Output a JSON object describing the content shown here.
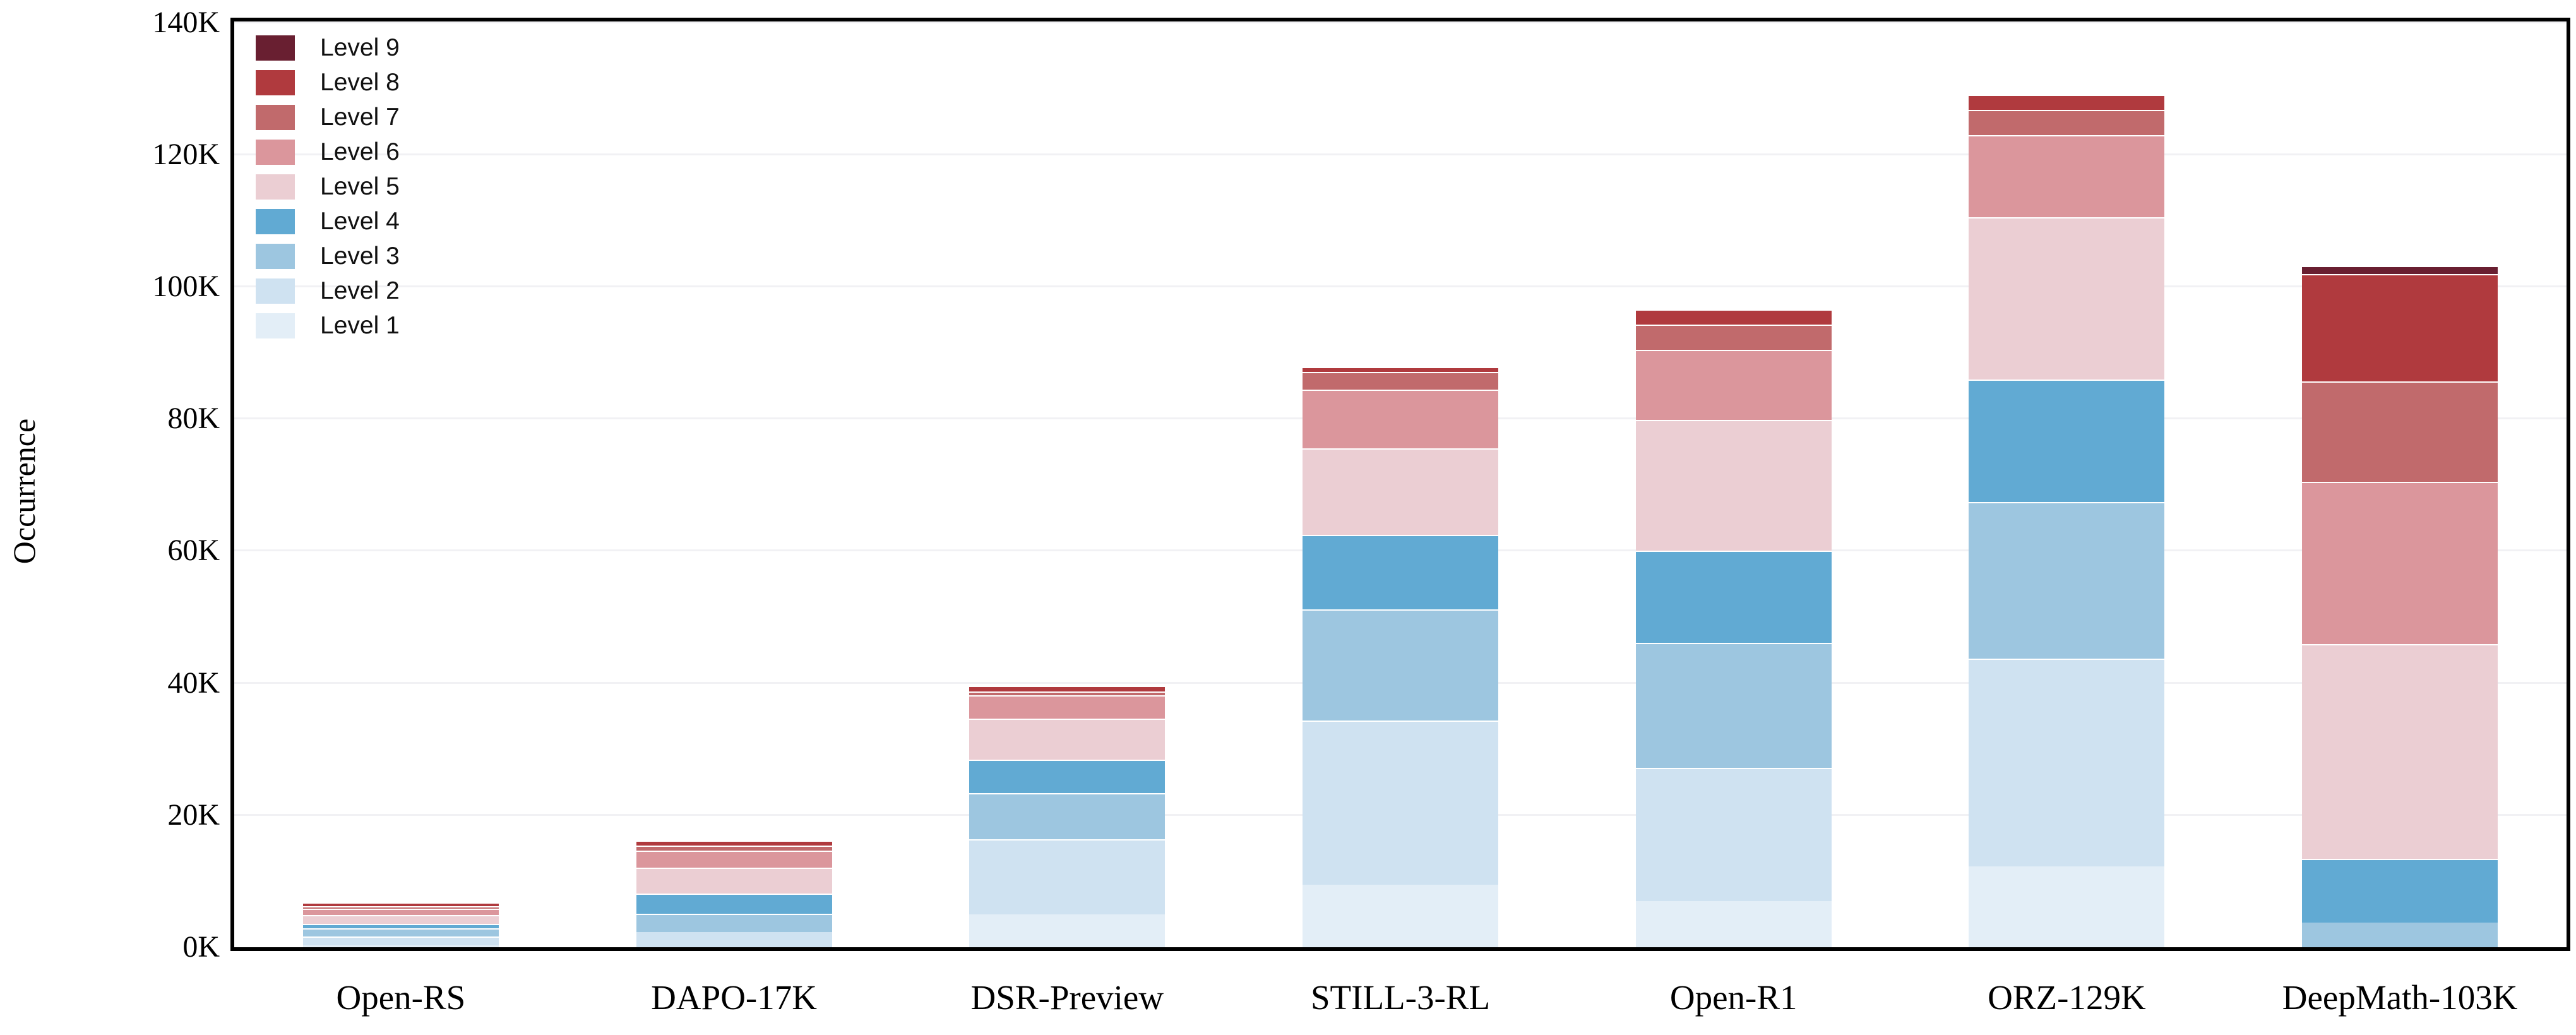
{
  "chart_data": {
    "type": "bar",
    "stacked": true,
    "title": "",
    "xlabel": "",
    "ylabel": "Occurrence",
    "unit": "K",
    "ylim": [
      0,
      140
    ],
    "grid": true,
    "legend_position": "upper left",
    "legend_order_note": "legend listed top-to-bottom from Level 9 down to Level 1; bars stack Level 1 at bottom to Level 9 at top",
    "categories": [
      "Open-RS",
      "DAPO-17K",
      "DSR-Preview",
      "STILL-3-RL",
      "Open-R1",
      "ORZ-129K",
      "DeepMath-103K"
    ],
    "y_tick_labels": [
      "0K",
      "20K",
      "40K",
      "60K",
      "80K",
      "100K",
      "120K",
      "140K"
    ],
    "series": [
      {
        "name": "Level 1",
        "color": "#e3eef7",
        "values": [
          0.3,
          0.0,
          5.0,
          9.5,
          7.0,
          12.2,
          0.0
        ]
      },
      {
        "name": "Level 2",
        "color": "#cfe2f1",
        "values": [
          1.3,
          2.3,
          11.4,
          24.9,
          20.2,
          31.5,
          0.0
        ]
      },
      {
        "name": "Level 3",
        "color": "#9dc6e0",
        "values": [
          1.2,
          2.8,
          7.0,
          16.8,
          18.9,
          23.7,
          3.7
        ]
      },
      {
        "name": "Level 4",
        "color": "#61aad3",
        "values": [
          0.7,
          3.1,
          5.1,
          11.3,
          14.0,
          18.5,
          9.7
        ]
      },
      {
        "name": "Level 5",
        "color": "#ebced3",
        "values": [
          1.3,
          3.9,
          6.2,
          13.1,
          19.8,
          24.6,
          32.5
        ]
      },
      {
        "name": "Level 6",
        "color": "#db969c",
        "values": [
          1.0,
          2.6,
          3.5,
          8.9,
          10.6,
          12.4,
          24.6
        ]
      },
      {
        "name": "Level 7",
        "color": "#c16a6c",
        "values": [
          0.4,
          0.8,
          0.6,
          2.7,
          3.8,
          3.8,
          15.2
        ]
      },
      {
        "name": "Level 8",
        "color": "#b03a3e",
        "values": [
          0.6,
          0.8,
          0.9,
          0.8,
          2.3,
          2.3,
          16.3
        ]
      },
      {
        "name": "Level 9",
        "color": "#691f31",
        "values": [
          0.0,
          0.0,
          0.0,
          0.0,
          0.0,
          0.0,
          1.2
        ]
      }
    ],
    "totals_k": [
      6.8,
      16.3,
      39.7,
      88.0,
      96.6,
      129.0,
      103.2
    ]
  }
}
